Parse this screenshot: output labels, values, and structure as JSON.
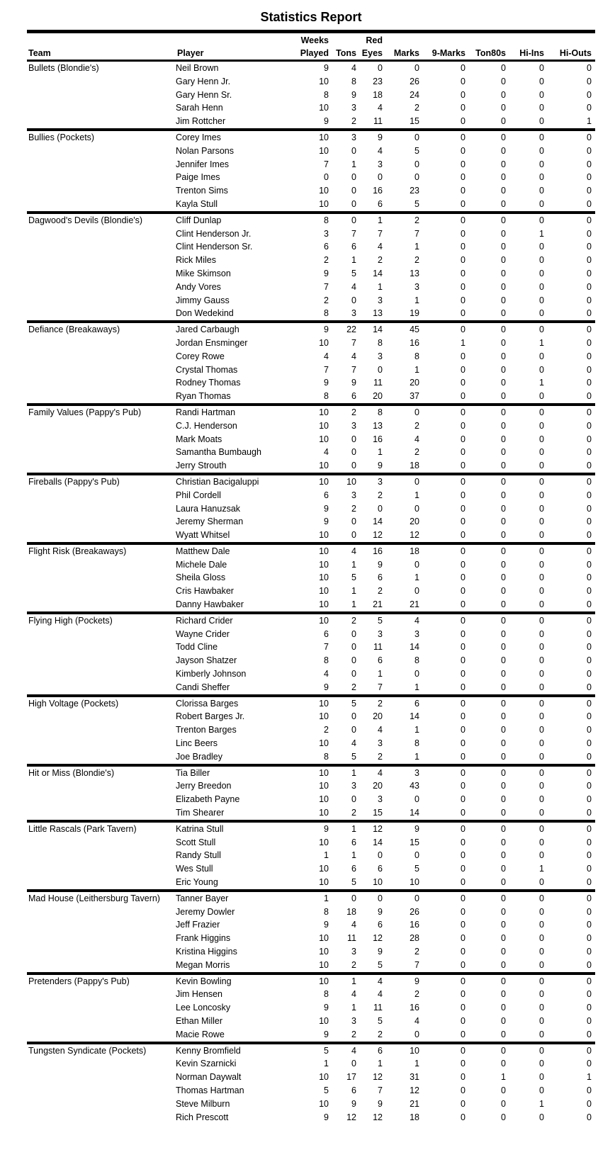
{
  "title": "Statistics Report",
  "colors": {
    "text": "#000000",
    "background": "#ffffff",
    "rule": "#000000"
  },
  "header": {
    "team": "Team",
    "player": "Player",
    "stat_cols": [
      {
        "top": "Weeks",
        "bottom": "Played"
      },
      {
        "top": "",
        "bottom": "Tons"
      },
      {
        "top": "Red",
        "bottom": "Eyes"
      },
      {
        "top": "",
        "bottom": "Marks"
      },
      {
        "top": "",
        "bottom": "9-Marks"
      },
      {
        "top": "",
        "bottom": "Ton80s"
      },
      {
        "top": "",
        "bottom": "Hi-Ins"
      },
      {
        "top": "",
        "bottom": "Hi-Outs"
      }
    ],
    "stat_keys": [
      "weeks-played",
      "tons",
      "red-eyes",
      "marks",
      "nine-marks",
      "ton80s",
      "hi-ins",
      "hi-outs"
    ]
  },
  "teams": [
    {
      "name": "Bullets (Blondie's)",
      "players": [
        {
          "name": "Neil Brown",
          "stats": [
            9,
            4,
            0,
            0,
            0,
            0,
            0,
            0
          ]
        },
        {
          "name": "Gary Henn Jr.",
          "stats": [
            10,
            8,
            23,
            26,
            0,
            0,
            0,
            0
          ]
        },
        {
          "name": "Gary Henn Sr.",
          "stats": [
            8,
            9,
            18,
            24,
            0,
            0,
            0,
            0
          ]
        },
        {
          "name": "Sarah Henn",
          "stats": [
            10,
            3,
            4,
            2,
            0,
            0,
            0,
            0
          ]
        },
        {
          "name": "Jim Rottcher",
          "stats": [
            9,
            2,
            11,
            15,
            0,
            0,
            0,
            1
          ]
        }
      ]
    },
    {
      "name": "Bullies (Pockets)",
      "players": [
        {
          "name": "Corey Imes",
          "stats": [
            10,
            3,
            9,
            0,
            0,
            0,
            0,
            0
          ]
        },
        {
          "name": "Nolan Parsons",
          "stats": [
            10,
            0,
            4,
            5,
            0,
            0,
            0,
            0
          ]
        },
        {
          "name": "Jennifer Imes",
          "stats": [
            7,
            1,
            3,
            0,
            0,
            0,
            0,
            0
          ]
        },
        {
          "name": "Paige Imes",
          "stats": [
            0,
            0,
            0,
            0,
            0,
            0,
            0,
            0
          ]
        },
        {
          "name": "Trenton Sims",
          "stats": [
            10,
            0,
            16,
            23,
            0,
            0,
            0,
            0
          ]
        },
        {
          "name": "Kayla Stull",
          "stats": [
            10,
            0,
            6,
            5,
            0,
            0,
            0,
            0
          ]
        }
      ]
    },
    {
      "name": "Dagwood's Devils (Blondie's)",
      "players": [
        {
          "name": "Cliff Dunlap",
          "stats": [
            8,
            0,
            1,
            2,
            0,
            0,
            0,
            0
          ]
        },
        {
          "name": "Clint Henderson Jr.",
          "stats": [
            3,
            7,
            7,
            7,
            0,
            0,
            1,
            0
          ]
        },
        {
          "name": "Clint Henderson Sr.",
          "stats": [
            6,
            6,
            4,
            1,
            0,
            0,
            0,
            0
          ]
        },
        {
          "name": "Rick Miles",
          "stats": [
            2,
            1,
            2,
            2,
            0,
            0,
            0,
            0
          ]
        },
        {
          "name": "Mike Skimson",
          "stats": [
            9,
            5,
            14,
            13,
            0,
            0,
            0,
            0
          ]
        },
        {
          "name": "Andy Vores",
          "stats": [
            7,
            4,
            1,
            3,
            0,
            0,
            0,
            0
          ]
        },
        {
          "name": "Jimmy Gauss",
          "stats": [
            2,
            0,
            3,
            1,
            0,
            0,
            0,
            0
          ]
        },
        {
          "name": "Don Wedekind",
          "stats": [
            8,
            3,
            13,
            19,
            0,
            0,
            0,
            0
          ]
        }
      ]
    },
    {
      "name": "Defiance (Breakaways)",
      "players": [
        {
          "name": "Jared Carbaugh",
          "stats": [
            9,
            22,
            14,
            45,
            0,
            0,
            0,
            0
          ]
        },
        {
          "name": "Jordan Ensminger",
          "stats": [
            10,
            7,
            8,
            16,
            1,
            0,
            1,
            0
          ]
        },
        {
          "name": "Corey Rowe",
          "stats": [
            4,
            4,
            3,
            8,
            0,
            0,
            0,
            0
          ]
        },
        {
          "name": "Crystal Thomas",
          "stats": [
            7,
            7,
            0,
            1,
            0,
            0,
            0,
            0
          ]
        },
        {
          "name": "Rodney Thomas",
          "stats": [
            9,
            9,
            11,
            20,
            0,
            0,
            1,
            0
          ]
        },
        {
          "name": "Ryan Thomas",
          "stats": [
            8,
            6,
            20,
            37,
            0,
            0,
            0,
            0
          ]
        }
      ]
    },
    {
      "name": "Family Values (Pappy's Pub)",
      "players": [
        {
          "name": "Randi Hartman",
          "stats": [
            10,
            2,
            8,
            0,
            0,
            0,
            0,
            0
          ]
        },
        {
          "name": "C.J. Henderson",
          "stats": [
            10,
            3,
            13,
            2,
            0,
            0,
            0,
            0
          ]
        },
        {
          "name": "Mark Moats",
          "stats": [
            10,
            0,
            16,
            4,
            0,
            0,
            0,
            0
          ]
        },
        {
          "name": "Samantha Bumbaugh",
          "stats": [
            4,
            0,
            1,
            2,
            0,
            0,
            0,
            0
          ]
        },
        {
          "name": "Jerry Strouth",
          "stats": [
            10,
            0,
            9,
            18,
            0,
            0,
            0,
            0
          ]
        }
      ]
    },
    {
      "name": "Fireballs (Pappy's Pub)",
      "players": [
        {
          "name": "Christian Bacigaluppi",
          "stats": [
            10,
            10,
            3,
            0,
            0,
            0,
            0,
            0
          ]
        },
        {
          "name": "Phil Cordell",
          "stats": [
            6,
            3,
            2,
            1,
            0,
            0,
            0,
            0
          ]
        },
        {
          "name": "Laura Hanuzsak",
          "stats": [
            9,
            2,
            0,
            0,
            0,
            0,
            0,
            0
          ]
        },
        {
          "name": "Jeremy Sherman",
          "stats": [
            9,
            0,
            14,
            20,
            0,
            0,
            0,
            0
          ]
        },
        {
          "name": "Wyatt Whitsel",
          "stats": [
            10,
            0,
            12,
            12,
            0,
            0,
            0,
            0
          ]
        }
      ]
    },
    {
      "name": "Flight Risk (Breakaways)",
      "players": [
        {
          "name": "Matthew Dale",
          "stats": [
            10,
            4,
            16,
            18,
            0,
            0,
            0,
            0
          ]
        },
        {
          "name": "Michele Dale",
          "stats": [
            10,
            1,
            9,
            0,
            0,
            0,
            0,
            0
          ]
        },
        {
          "name": "Sheila Gloss",
          "stats": [
            10,
            5,
            6,
            1,
            0,
            0,
            0,
            0
          ]
        },
        {
          "name": "Cris Hawbaker",
          "stats": [
            10,
            1,
            2,
            0,
            0,
            0,
            0,
            0
          ]
        },
        {
          "name": "Danny Hawbaker",
          "stats": [
            10,
            1,
            21,
            21,
            0,
            0,
            0,
            0
          ]
        }
      ]
    },
    {
      "name": "Flying High (Pockets)",
      "players": [
        {
          "name": "Richard Crider",
          "stats": [
            10,
            2,
            5,
            4,
            0,
            0,
            0,
            0
          ]
        },
        {
          "name": "Wayne Crider",
          "stats": [
            6,
            0,
            3,
            3,
            0,
            0,
            0,
            0
          ]
        },
        {
          "name": "Todd Cline",
          "stats": [
            7,
            0,
            11,
            14,
            0,
            0,
            0,
            0
          ]
        },
        {
          "name": "Jayson Shatzer",
          "stats": [
            8,
            0,
            6,
            8,
            0,
            0,
            0,
            0
          ]
        },
        {
          "name": "Kimberly Johnson",
          "stats": [
            4,
            0,
            1,
            0,
            0,
            0,
            0,
            0
          ]
        },
        {
          "name": "Candi Sheffer",
          "stats": [
            9,
            2,
            7,
            1,
            0,
            0,
            0,
            0
          ]
        }
      ]
    },
    {
      "name": "High Voltage (Pockets)",
      "players": [
        {
          "name": "Clorissa Barges",
          "stats": [
            10,
            5,
            2,
            6,
            0,
            0,
            0,
            0
          ]
        },
        {
          "name": "Robert Barges Jr.",
          "stats": [
            10,
            0,
            20,
            14,
            0,
            0,
            0,
            0
          ]
        },
        {
          "name": "Trenton Barges",
          "stats": [
            2,
            0,
            4,
            1,
            0,
            0,
            0,
            0
          ]
        },
        {
          "name": "Linc Beers",
          "stats": [
            10,
            4,
            3,
            8,
            0,
            0,
            0,
            0
          ]
        },
        {
          "name": "Joe Bradley",
          "stats": [
            8,
            5,
            2,
            1,
            0,
            0,
            0,
            0
          ]
        }
      ]
    },
    {
      "name": "Hit or Miss (Blondie's)",
      "players": [
        {
          "name": "Tia Biller",
          "stats": [
            10,
            1,
            4,
            3,
            0,
            0,
            0,
            0
          ]
        },
        {
          "name": "Jerry Breedon",
          "stats": [
            10,
            3,
            20,
            43,
            0,
            0,
            0,
            0
          ]
        },
        {
          "name": "Elizabeth Payne",
          "stats": [
            10,
            0,
            3,
            0,
            0,
            0,
            0,
            0
          ]
        },
        {
          "name": "Tim Shearer",
          "stats": [
            10,
            2,
            15,
            14,
            0,
            0,
            0,
            0
          ]
        }
      ]
    },
    {
      "name": "Little Rascals (Park Tavern)",
      "players": [
        {
          "name": "Katrina Stull",
          "stats": [
            9,
            1,
            12,
            9,
            0,
            0,
            0,
            0
          ]
        },
        {
          "name": "Scott Stull",
          "stats": [
            10,
            6,
            14,
            15,
            0,
            0,
            0,
            0
          ]
        },
        {
          "name": "Randy Stull",
          "stats": [
            1,
            1,
            0,
            0,
            0,
            0,
            0,
            0
          ]
        },
        {
          "name": "Wes Stull",
          "stats": [
            10,
            6,
            6,
            5,
            0,
            0,
            1,
            0
          ]
        },
        {
          "name": "Eric Young",
          "stats": [
            10,
            5,
            10,
            10,
            0,
            0,
            0,
            0
          ]
        }
      ]
    },
    {
      "name": "Mad House (Leithersburg Tavern)",
      "players": [
        {
          "name": "Tanner Bayer",
          "stats": [
            1,
            0,
            0,
            0,
            0,
            0,
            0,
            0
          ]
        },
        {
          "name": "Jeremy Dowler",
          "stats": [
            8,
            18,
            9,
            26,
            0,
            0,
            0,
            0
          ]
        },
        {
          "name": "Jeff Frazier",
          "stats": [
            9,
            4,
            6,
            16,
            0,
            0,
            0,
            0
          ]
        },
        {
          "name": "Frank Higgins",
          "stats": [
            10,
            11,
            12,
            28,
            0,
            0,
            0,
            0
          ]
        },
        {
          "name": "Kristina Higgins",
          "stats": [
            10,
            3,
            9,
            2,
            0,
            0,
            0,
            0
          ]
        },
        {
          "name": "Megan Morris",
          "stats": [
            10,
            2,
            5,
            7,
            0,
            0,
            0,
            0
          ]
        }
      ]
    },
    {
      "name": "Pretenders (Pappy's Pub)",
      "players": [
        {
          "name": "Kevin Bowling",
          "stats": [
            10,
            1,
            4,
            9,
            0,
            0,
            0,
            0
          ]
        },
        {
          "name": "Jim Hensen",
          "stats": [
            8,
            4,
            4,
            2,
            0,
            0,
            0,
            0
          ]
        },
        {
          "name": "Lee Loncosky",
          "stats": [
            9,
            1,
            11,
            16,
            0,
            0,
            0,
            0
          ]
        },
        {
          "name": "Ethan Miller",
          "stats": [
            10,
            3,
            5,
            4,
            0,
            0,
            0,
            0
          ]
        },
        {
          "name": "Macie Rowe",
          "stats": [
            9,
            2,
            2,
            0,
            0,
            0,
            0,
            0
          ]
        }
      ]
    },
    {
      "name": "Tungsten Syndicate (Pockets)",
      "players": [
        {
          "name": "Kenny Bromfield",
          "stats": [
            5,
            4,
            6,
            10,
            0,
            0,
            0,
            0
          ]
        },
        {
          "name": "Kevin Szarnicki",
          "stats": [
            1,
            0,
            1,
            1,
            0,
            0,
            0,
            0
          ]
        },
        {
          "name": "Norman Daywalt",
          "stats": [
            10,
            17,
            12,
            31,
            0,
            1,
            0,
            1
          ]
        },
        {
          "name": "Thomas Hartman",
          "stats": [
            5,
            6,
            7,
            12,
            0,
            0,
            0,
            0
          ]
        },
        {
          "name": "Steve Milburn",
          "stats": [
            10,
            9,
            9,
            21,
            0,
            0,
            1,
            0
          ]
        },
        {
          "name": "Rich Prescott",
          "stats": [
            9,
            12,
            12,
            18,
            0,
            0,
            0,
            0
          ]
        }
      ]
    }
  ]
}
